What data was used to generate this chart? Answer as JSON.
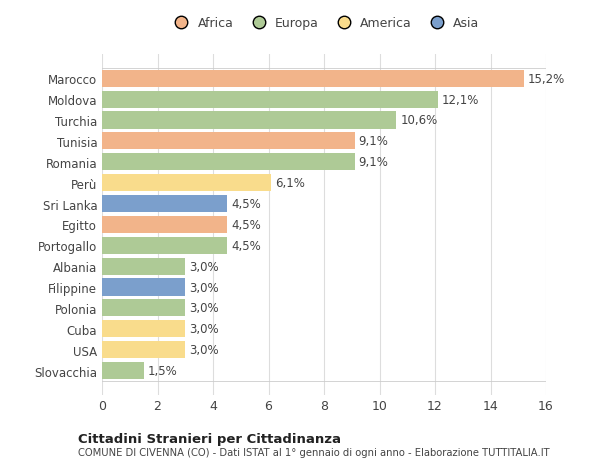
{
  "categories": [
    "Marocco",
    "Moldova",
    "Turchia",
    "Tunisia",
    "Romania",
    "Perù",
    "Sri Lanka",
    "Egitto",
    "Portogallo",
    "Albania",
    "Filippine",
    "Polonia",
    "Cuba",
    "USA",
    "Slovacchia"
  ],
  "values": [
    15.2,
    12.1,
    10.6,
    9.1,
    9.1,
    6.1,
    4.5,
    4.5,
    4.5,
    3.0,
    3.0,
    3.0,
    3.0,
    3.0,
    1.5
  ],
  "labels": [
    "15,2%",
    "12,1%",
    "10,6%",
    "9,1%",
    "9,1%",
    "6,1%",
    "4,5%",
    "4,5%",
    "4,5%",
    "3,0%",
    "3,0%",
    "3,0%",
    "3,0%",
    "3,0%",
    "1,5%"
  ],
  "colors": [
    "#F2B48A",
    "#AECA96",
    "#AECA96",
    "#F2B48A",
    "#AECA96",
    "#F9DC8C",
    "#7B9FCC",
    "#F2B48A",
    "#AECA96",
    "#AECA96",
    "#7B9FCC",
    "#AECA96",
    "#F9DC8C",
    "#F9DC8C",
    "#AECA96"
  ],
  "continent_colors": {
    "Africa": "#F2B48A",
    "Europa": "#AECA96",
    "America": "#F9DC8C",
    "Asia": "#7B9FCC"
  },
  "xlim": [
    0,
    16
  ],
  "xticks": [
    0,
    2,
    4,
    6,
    8,
    10,
    12,
    14,
    16
  ],
  "title_bold": "Cittadini Stranieri per Cittadinanza",
  "subtitle": "COMUNE DI CIVENNA (CO) - Dati ISTAT al 1° gennaio di ogni anno - Elaborazione TUTTITALIA.IT",
  "background_color": "#ffffff",
  "plot_bg_color": "#ffffff",
  "grid_color": "#dddddd",
  "text_color": "#444444",
  "label_fontsize": 8.5,
  "tick_fontsize": 9,
  "bar_height": 0.82
}
